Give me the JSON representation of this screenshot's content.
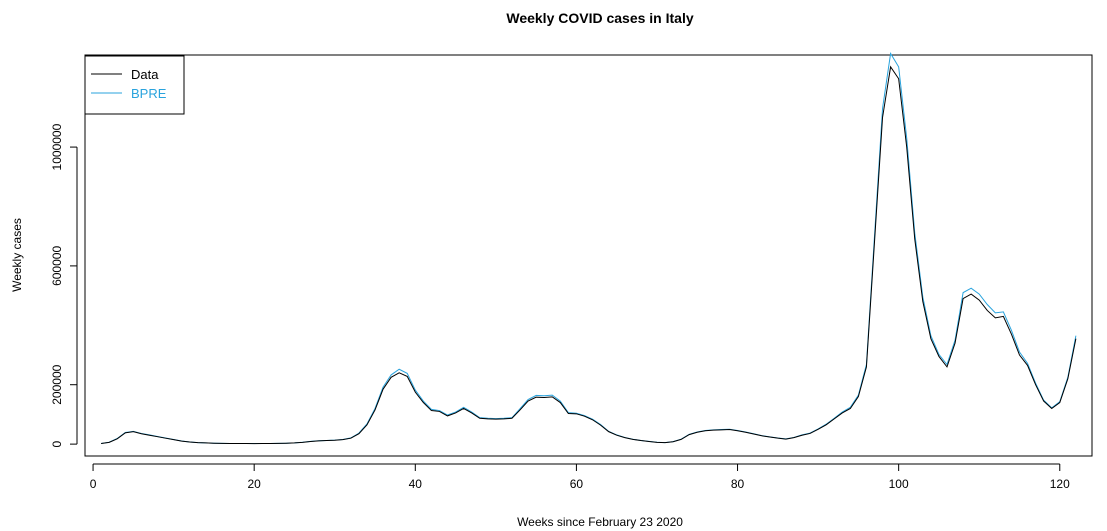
{
  "chart_data": {
    "type": "line",
    "title": "Weekly COVID cases in Italy",
    "xlabel": "Weeks since February 23 2020",
    "ylabel": "Weekly cases",
    "xlim": [
      -1,
      124
    ],
    "ylim": [
      -40000,
      1310000
    ],
    "x_ticks": [
      0,
      20,
      40,
      60,
      80,
      100,
      120
    ],
    "y_ticks": [
      0,
      200000,
      600000,
      1000000
    ],
    "legend_position": "top-left",
    "grid": false,
    "series": [
      {
        "name": "Data",
        "color": "#000000",
        "x": [
          1,
          2,
          3,
          4,
          5,
          6,
          7,
          8,
          9,
          10,
          11,
          12,
          13,
          14,
          15,
          16,
          17,
          18,
          19,
          20,
          21,
          22,
          23,
          24,
          25,
          26,
          27,
          28,
          29,
          30,
          31,
          32,
          33,
          34,
          35,
          36,
          37,
          38,
          39,
          40,
          41,
          42,
          43,
          44,
          45,
          46,
          47,
          48,
          49,
          50,
          51,
          52,
          53,
          54,
          55,
          56,
          57,
          58,
          59,
          60,
          61,
          62,
          63,
          64,
          65,
          66,
          67,
          68,
          69,
          70,
          71,
          72,
          73,
          74,
          75,
          76,
          77,
          78,
          79,
          80,
          81,
          82,
          83,
          84,
          85,
          86,
          87,
          88,
          89,
          90,
          91,
          92,
          93,
          94,
          95,
          96,
          97,
          98,
          99,
          100,
          101,
          102,
          103,
          104,
          105,
          106,
          107,
          108,
          109,
          110,
          111,
          112,
          113,
          114,
          115,
          116,
          117,
          118,
          119,
          120,
          121,
          122
        ],
        "values": [
          2000,
          6000,
          18000,
          38000,
          42000,
          35000,
          30000,
          25000,
          20000,
          15000,
          10000,
          7000,
          5000,
          4000,
          3000,
          2500,
          2000,
          2000,
          2000,
          1800,
          2000,
          2200,
          2500,
          3000,
          4000,
          6000,
          9000,
          11000,
          12000,
          13000,
          15000,
          20000,
          35000,
          65000,
          115000,
          185000,
          225000,
          240000,
          228000,
          175000,
          140000,
          113000,
          110000,
          95000,
          105000,
          120000,
          105000,
          87000,
          85000,
          84000,
          85000,
          87000,
          115000,
          145000,
          158000,
          157000,
          159000,
          140000,
          103000,
          102000,
          94000,
          82000,
          64000,
          42000,
          30000,
          22000,
          16000,
          12000,
          9000,
          6000,
          5000,
          8000,
          16000,
          32000,
          40000,
          45000,
          47000,
          48000,
          49000,
          45000,
          40000,
          34000,
          28000,
          24000,
          20000,
          17000,
          22000,
          30000,
          36000,
          50000,
          65000,
          85000,
          105000,
          120000,
          160000,
          260000,
          680000,
          1100000,
          1270000,
          1230000,
          1000000,
          690000,
          480000,
          355000,
          295000,
          260000,
          340000,
          490000,
          505000,
          485000,
          450000,
          425000,
          430000,
          370000,
          300000,
          265000,
          200000,
          145000,
          120000,
          140000,
          220000,
          355000
        ]
      },
      {
        "name": "BPRE",
        "color": "#29a3dd",
        "x": [
          1,
          2,
          3,
          4,
          5,
          6,
          7,
          8,
          9,
          10,
          11,
          12,
          13,
          14,
          15,
          16,
          17,
          18,
          19,
          20,
          21,
          22,
          23,
          24,
          25,
          26,
          27,
          28,
          29,
          30,
          31,
          32,
          33,
          34,
          35,
          36,
          37,
          38,
          39,
          40,
          41,
          42,
          43,
          44,
          45,
          46,
          47,
          48,
          49,
          50,
          51,
          52,
          53,
          54,
          55,
          56,
          57,
          58,
          59,
          60,
          61,
          62,
          63,
          64,
          65,
          66,
          67,
          68,
          69,
          70,
          71,
          72,
          73,
          74,
          75,
          76,
          77,
          78,
          79,
          80,
          81,
          82,
          83,
          84,
          85,
          86,
          87,
          88,
          89,
          90,
          91,
          92,
          93,
          94,
          95,
          96,
          97,
          98,
          99,
          100,
          101,
          102,
          103,
          104,
          105,
          106,
          107,
          108,
          109,
          110,
          111,
          112,
          113,
          114,
          115,
          116,
          117,
          118,
          119,
          120,
          121,
          122
        ],
        "values": [
          2200,
          6500,
          19000,
          39000,
          43000,
          36000,
          31000,
          25500,
          20500,
          15500,
          10500,
          7200,
          5200,
          4100,
          3100,
          2600,
          2100,
          2000,
          2000,
          1900,
          2100,
          2300,
          2600,
          3100,
          4200,
          6200,
          9300,
          11300,
          12300,
          13400,
          15500,
          21000,
          37000,
          68000,
          120000,
          192000,
          233000,
          252000,
          238000,
          182000,
          145000,
          117000,
          113000,
          98000,
          108000,
          124000,
          108000,
          89000,
          87000,
          86000,
          87000,
          89000,
          119000,
          150000,
          164000,
          163000,
          165000,
          145000,
          106000,
          104000,
          96000,
          84000,
          66000,
          43000,
          31000,
          22500,
          16500,
          12300,
          9200,
          6200,
          5200,
          8300,
          16500,
          33000,
          41000,
          46000,
          48000,
          49000,
          50000,
          46000,
          41000,
          35000,
          28800,
          24500,
          20500,
          17500,
          22500,
          31000,
          37000,
          51000,
          67000,
          87000,
          108000,
          124000,
          165000,
          268000,
          700000,
          1130000,
          1315000,
          1270000,
          1030000,
          710000,
          495000,
          365000,
          302000,
          268000,
          350000,
          510000,
          525000,
          505000,
          470000,
          442000,
          445000,
          383000,
          310000,
          272000,
          205000,
          148000,
          122000,
          143000,
          225000,
          365000
        ]
      }
    ]
  }
}
